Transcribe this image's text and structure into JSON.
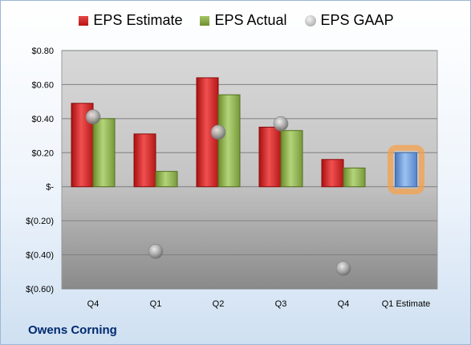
{
  "chart_data": {
    "type": "bar",
    "categories": [
      "Q4",
      "Q1",
      "Q2",
      "Q3",
      "Q4",
      "Q1 Estimate"
    ],
    "series": [
      {
        "name": "EPS Estimate",
        "values": [
          0.49,
          0.31,
          0.64,
          0.35,
          0.16,
          0.2
        ],
        "color": "#cc2020"
      },
      {
        "name": "EPS Actual",
        "values": [
          0.4,
          0.09,
          0.54,
          0.33,
          0.11,
          null
        ],
        "color": "#8aad45"
      },
      {
        "name": "EPS GAAP",
        "values": [
          0.41,
          -0.38,
          0.32,
          0.37,
          -0.48,
          null
        ],
        "color": "#a0a0a0",
        "style": "marker"
      }
    ],
    "highlight": {
      "category": "Q1 Estimate",
      "value": 0.2,
      "color": "#6a9bd8",
      "glow": "#f5a04a"
    },
    "yticks": [
      "$0.80",
      "$0.60",
      "$0.40",
      "$0.20",
      "$-",
      "$(0.20)",
      "$(0.40)",
      "$(0.60)"
    ],
    "ylim": [
      -0.6,
      0.8
    ],
    "grid": true,
    "legend_position": "top-center"
  },
  "company": "Owens Corning"
}
